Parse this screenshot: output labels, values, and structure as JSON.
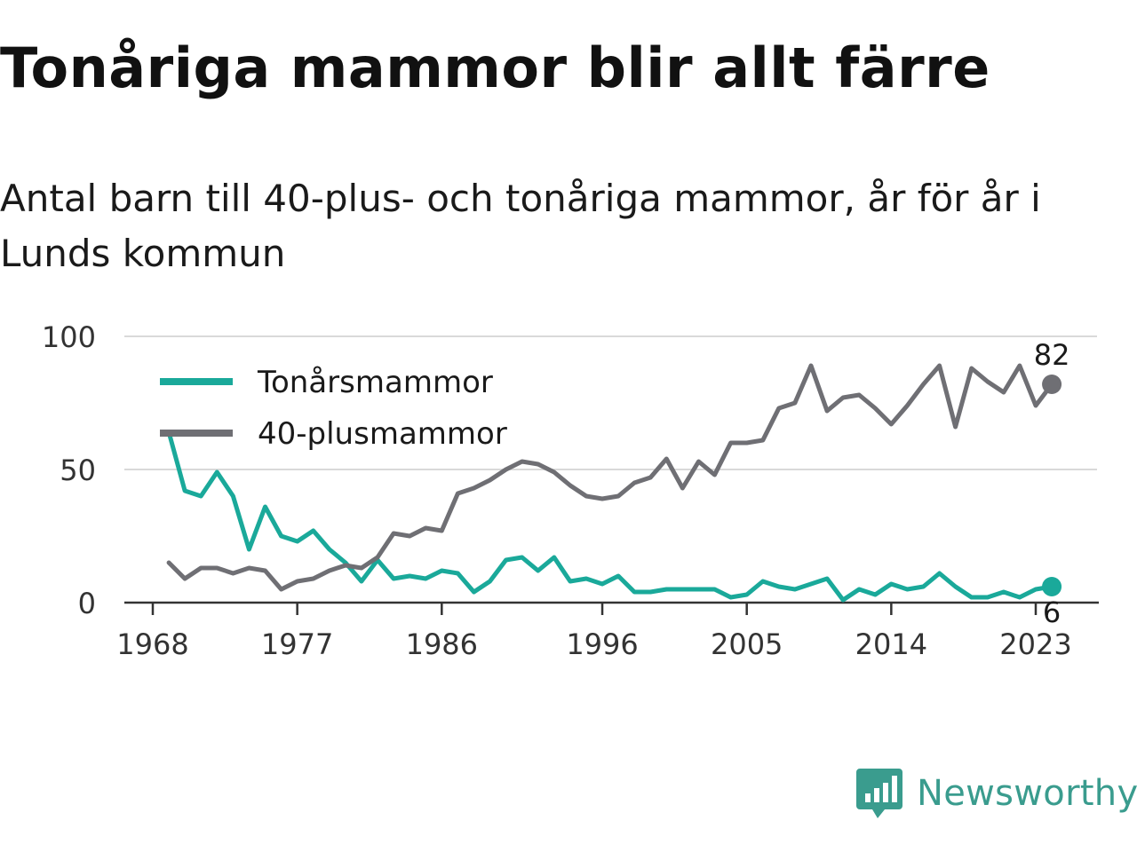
{
  "title": "Tonåriga mammor blir allt färre",
  "subtitle": "Antal barn till 40-plus- och tonåriga mammor, år för år i Lunds kommun",
  "brand": {
    "name": "Newsworthy",
    "icon": "newsworthy-logo-icon"
  },
  "colors": {
    "teal": "#1aa99a",
    "gray": "#6f6f74",
    "grid": "#d9d9d9",
    "axis": "#333333",
    "brand": "#3a9c8e"
  },
  "chart_data": {
    "type": "line",
    "x": [
      1968,
      1969,
      1970,
      1971,
      1972,
      1973,
      1974,
      1975,
      1976,
      1977,
      1978,
      1979,
      1980,
      1981,
      1982,
      1983,
      1984,
      1985,
      1986,
      1987,
      1988,
      1989,
      1990,
      1991,
      1992,
      1993,
      1994,
      1995,
      1996,
      1997,
      1998,
      1999,
      2000,
      2001,
      2002,
      2003,
      2004,
      2005,
      2006,
      2007,
      2008,
      2009,
      2010,
      2011,
      2012,
      2013,
      2014,
      2015,
      2016,
      2017,
      2018,
      2019,
      2020,
      2021,
      2022,
      2023,
      2024
    ],
    "x_ticks": [
      "1968",
      "1977",
      "1986",
      "1996",
      "2005",
      "2014",
      "2023"
    ],
    "y_ticks": [
      "0",
      "50",
      "100"
    ],
    "ylim": [
      0,
      100
    ],
    "grid": true,
    "legend_position": "top-left",
    "series": [
      {
        "name": "Tonårsmammor",
        "color": "#1aa99a",
        "values": [
          null,
          64,
          42,
          40,
          49,
          40,
          20,
          36,
          25,
          23,
          27,
          20,
          15,
          8,
          16,
          9,
          10,
          9,
          12,
          11,
          4,
          8,
          16,
          17,
          12,
          17,
          8,
          9,
          7,
          10,
          4,
          4,
          5,
          5,
          5,
          5,
          2,
          3,
          8,
          6,
          5,
          7,
          9,
          1,
          5,
          3,
          7,
          5,
          6,
          11,
          6,
          2,
          2,
          4,
          2,
          5,
          6
        ],
        "end_label": "6"
      },
      {
        "name": "40-plusmammor",
        "color": "#6f6f74",
        "values": [
          null,
          15,
          9,
          13,
          13,
          11,
          13,
          12,
          5,
          8,
          9,
          12,
          14,
          13,
          17,
          26,
          25,
          28,
          27,
          41,
          43,
          46,
          50,
          53,
          52,
          49,
          44,
          40,
          39,
          40,
          45,
          47,
          54,
          43,
          53,
          48,
          60,
          60,
          61,
          73,
          75,
          89,
          72,
          77,
          78,
          73,
          67,
          74,
          82,
          89,
          66,
          88,
          83,
          79,
          89,
          74,
          82
        ],
        "end_label": "82"
      }
    ]
  }
}
